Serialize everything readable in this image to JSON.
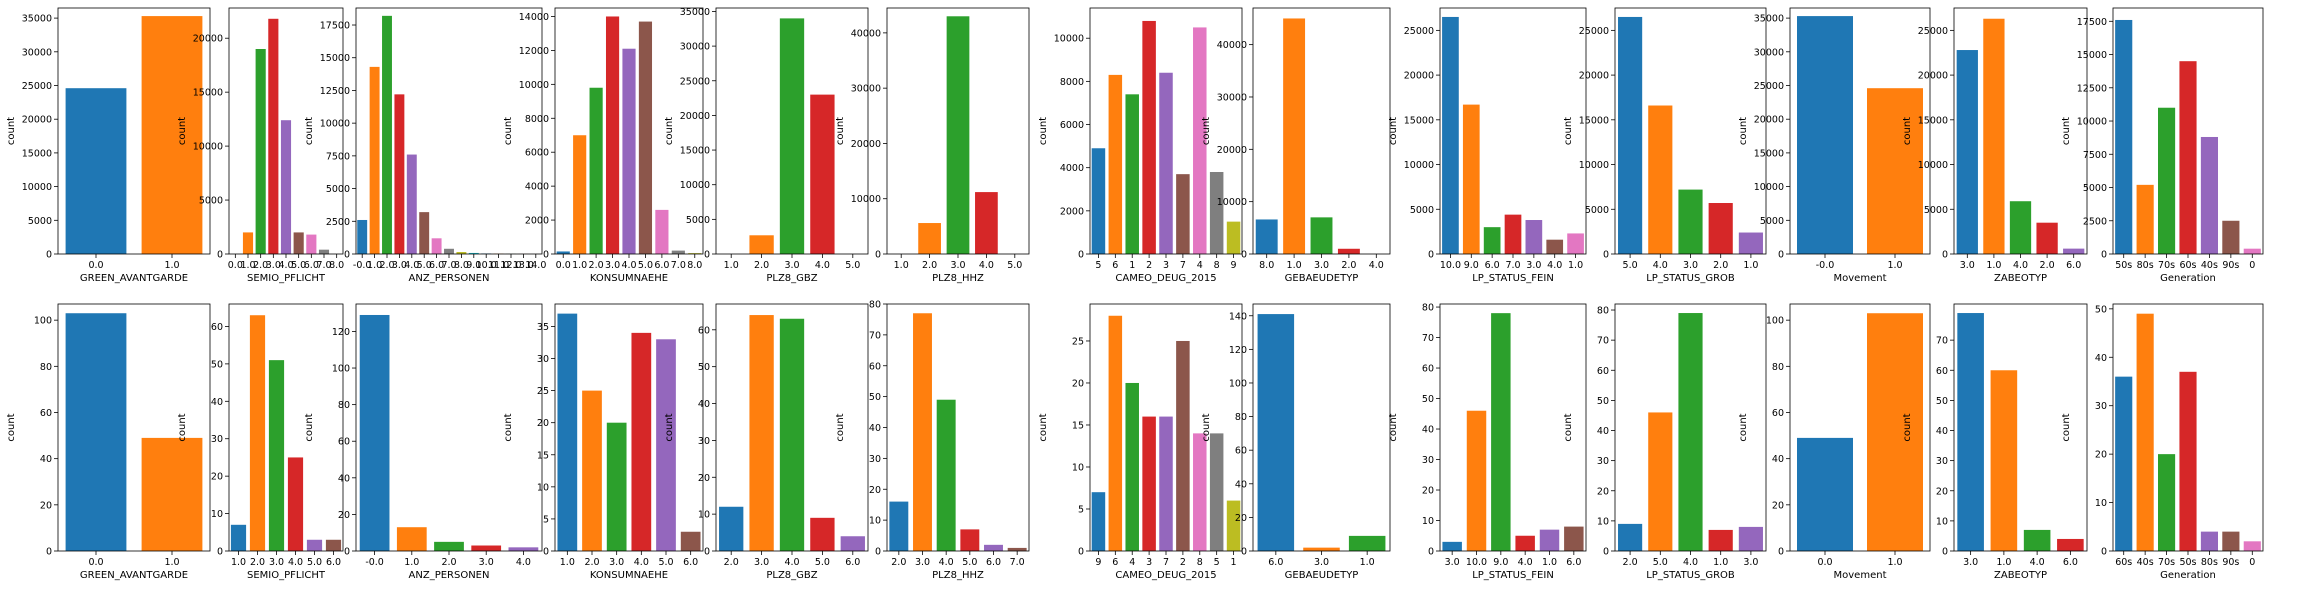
{
  "palette": [
    "#1f77b4",
    "#ff7f0e",
    "#2ca02c",
    "#d62728",
    "#9467bd",
    "#8c564b",
    "#e377c2",
    "#7f7f7f",
    "#bcbd22",
    "#17becf"
  ],
  "chart_data": [
    {
      "type": "bar",
      "xlabel": "GREEN_AVANTGARDE",
      "ylabel": "count",
      "categories": [
        "0.0",
        "1.0"
      ],
      "values": [
        24600,
        35300
      ],
      "ylim": [
        0,
        36500
      ],
      "yticks": [
        "0",
        "5000",
        "10000",
        "15000",
        "20000",
        "25000",
        "30000",
        "35000"
      ]
    },
    {
      "type": "bar",
      "xlabel": "SEMIO_PFLICHT",
      "ylabel": "count",
      "categories": [
        "0.0",
        "1.0",
        "2.0",
        "3.0",
        "4.0",
        "5.0",
        "6.0",
        "7.0",
        "8.0"
      ],
      "values": [
        0,
        2000,
        19000,
        21800,
        12400,
        2000,
        1800,
        400,
        0
      ],
      "ylim": [
        0,
        22800
      ],
      "yticks": [
        "0",
        "5000",
        "10000",
        "15000",
        "20000"
      ]
    },
    {
      "type": "bar",
      "xlabel": "ANZ_PERSONEN",
      "ylabel": "count",
      "categories": [
        "-0.0",
        "1.0",
        "2.0",
        "3.0",
        "4.0",
        "5.0",
        "6.0",
        "7.0",
        "8.0",
        "9.0",
        "10.0",
        "11.0",
        "12.0",
        "13.0",
        "14.0"
      ],
      "values": [
        2600,
        14300,
        18200,
        12200,
        7600,
        3200,
        1200,
        400,
        150,
        80,
        40,
        20,
        10,
        5,
        3
      ],
      "ylim": [
        0,
        18800
      ],
      "yticks": [
        "0",
        "2500",
        "5000",
        "7500",
        "10000",
        "12500",
        "15000",
        "17500"
      ]
    },
    {
      "type": "bar",
      "xlabel": "KONSUMNAEHE",
      "ylabel": "count",
      "categories": [
        "0.0",
        "1.0",
        "2.0",
        "3.0",
        "4.0",
        "5.0",
        "6.0",
        "7.0",
        "8.0"
      ],
      "values": [
        150,
        7000,
        9800,
        14000,
        12100,
        13700,
        2600,
        200,
        50
      ],
      "ylim": [
        0,
        14500
      ],
      "yticks": [
        "0",
        "2000",
        "4000",
        "6000",
        "8000",
        "10000",
        "12000",
        "14000"
      ]
    },
    {
      "type": "bar",
      "xlabel": "PLZ8_GBZ",
      "ylabel": "count",
      "categories": [
        "1.0",
        "2.0",
        "3.0",
        "4.0",
        "5.0"
      ],
      "values": [
        0,
        2700,
        34000,
        23000,
        0
      ],
      "ylim": [
        0,
        35500
      ],
      "yticks": [
        "0",
        "5000",
        "10000",
        "15000",
        "20000",
        "25000",
        "30000",
        "35000"
      ]
    },
    {
      "type": "bar",
      "xlabel": "PLZ8_HHZ",
      "ylabel": "count",
      "categories": [
        "1.0",
        "2.0",
        "3.0",
        "4.0",
        "5.0"
      ],
      "values": [
        0,
        5600,
        43000,
        11200,
        0
      ],
      "ylim": [
        0,
        44500
      ],
      "yticks": [
        "0",
        "10000",
        "20000",
        "30000",
        "40000"
      ]
    },
    {
      "type": "bar",
      "xlabel": "CAMEO_DEUG_2015",
      "ylabel": "count",
      "categories": [
        "5",
        "6",
        "1",
        "2",
        "3",
        "7",
        "4",
        "8",
        "9"
      ],
      "values": [
        4900,
        8300,
        7400,
        10800,
        8400,
        3700,
        10500,
        3800,
        1500
      ],
      "ylim": [
        0,
        11400
      ],
      "yticks": [
        "0",
        "2000",
        "4000",
        "6000",
        "8000",
        "10000"
      ]
    },
    {
      "type": "bar",
      "xlabel": "GEBAEUDETYP",
      "ylabel": "count",
      "categories": [
        "8.0",
        "1.0",
        "3.0",
        "2.0",
        "4.0"
      ],
      "values": [
        6600,
        45000,
        7000,
        1000,
        0
      ],
      "ylim": [
        0,
        47000
      ],
      "yticks": [
        "0",
        "10000",
        "20000",
        "30000",
        "40000"
      ]
    },
    {
      "type": "bar",
      "xlabel": "LP_STATUS_FEIN",
      "ylabel": "count",
      "categories": [
        "10.0",
        "9.0",
        "6.0",
        "7.0",
        "3.0",
        "4.0",
        "1.0"
      ],
      "values": [
        26500,
        16700,
        3000,
        4400,
        3800,
        1600,
        2300
      ],
      "ylim": [
        0,
        27500
      ],
      "yticks": [
        "0",
        "5000",
        "10000",
        "15000",
        "20000",
        "25000"
      ]
    },
    {
      "type": "bar",
      "xlabel": "LP_STATUS_GROB",
      "ylabel": "count",
      "categories": [
        "5.0",
        "4.0",
        "3.0",
        "2.0",
        "1.0"
      ],
      "values": [
        26500,
        16600,
        7200,
        5700,
        2400
      ],
      "ylim": [
        0,
        27500
      ],
      "yticks": [
        "0",
        "5000",
        "10000",
        "15000",
        "20000",
        "25000"
      ]
    },
    {
      "type": "bar",
      "xlabel": "Movement",
      "ylabel": "count",
      "categories": [
        "-0.0",
        "1.0"
      ],
      "values": [
        35300,
        24600
      ],
      "ylim": [
        0,
        36500
      ],
      "yticks": [
        "0",
        "5000",
        "10000",
        "15000",
        "20000",
        "25000",
        "30000",
        "35000"
      ]
    },
    {
      "type": "bar",
      "xlabel": "ZABEOTYP",
      "ylabel": "count",
      "categories": [
        "3.0",
        "1.0",
        "4.0",
        "2.0",
        "6.0"
      ],
      "values": [
        22800,
        26300,
        5900,
        3500,
        600
      ],
      "ylim": [
        0,
        27500
      ],
      "yticks": [
        "0",
        "5000",
        "10000",
        "15000",
        "20000",
        "25000"
      ]
    },
    {
      "type": "bar",
      "xlabel": "Generation",
      "ylabel": "count",
      "categories": [
        "50s",
        "80s",
        "70s",
        "60s",
        "40s",
        "90s",
        "0"
      ],
      "values": [
        17600,
        5200,
        11000,
        14500,
        8800,
        2500,
        400
      ],
      "ylim": [
        0,
        18500
      ],
      "yticks": [
        "0",
        "2500",
        "5000",
        "7500",
        "10000",
        "12500",
        "15000",
        "17500"
      ]
    },
    {
      "type": "bar",
      "xlabel": "GREEN_AVANTGARDE",
      "ylabel": "count",
      "categories": [
        "0.0",
        "1.0"
      ],
      "values": [
        103,
        49
      ],
      "ylim": [
        0,
        107
      ],
      "yticks": [
        "0",
        "20",
        "40",
        "60",
        "80",
        "100"
      ]
    },
    {
      "type": "bar",
      "xlabel": "SEMIO_PFLICHT",
      "ylabel": "count",
      "categories": [
        "1.0",
        "2.0",
        "3.0",
        "4.0",
        "5.0",
        "6.0"
      ],
      "values": [
        7,
        63,
        51,
        25,
        3,
        3
      ],
      "ylim": [
        0,
        66
      ],
      "yticks": [
        "0",
        "10",
        "20",
        "30",
        "40",
        "50",
        "60"
      ]
    },
    {
      "type": "bar",
      "xlabel": "ANZ_PERSONEN",
      "ylabel": "count",
      "categories": [
        "-0.0",
        "1.0",
        "2.0",
        "3.0",
        "4.0"
      ],
      "values": [
        129,
        13,
        5,
        3,
        2
      ],
      "ylim": [
        0,
        135
      ],
      "yticks": [
        "0",
        "20",
        "40",
        "60",
        "80",
        "100",
        "120"
      ]
    },
    {
      "type": "bar",
      "xlabel": "KONSUMNAEHE",
      "ylabel": "count",
      "categories": [
        "1.0",
        "2.0",
        "3.0",
        "4.0",
        "5.0",
        "6.0"
      ],
      "values": [
        37,
        25,
        20,
        34,
        33,
        3
      ],
      "ylim": [
        0,
        38.5
      ],
      "yticks": [
        "0",
        "5",
        "10",
        "15",
        "20",
        "25",
        "30",
        "35"
      ]
    },
    {
      "type": "bar",
      "xlabel": "PLZ8_GBZ",
      "ylabel": "count",
      "categories": [
        "2.0",
        "3.0",
        "4.0",
        "5.0",
        "6.0"
      ],
      "values": [
        12,
        64,
        63,
        9,
        4
      ],
      "ylim": [
        0,
        67
      ],
      "yticks": [
        "0",
        "10",
        "20",
        "30",
        "40",
        "50",
        "60"
      ]
    },
    {
      "type": "bar",
      "xlabel": "PLZ8_HHZ",
      "ylabel": "count",
      "categories": [
        "2.0",
        "3.0",
        "4.0",
        "5.0",
        "6.0",
        "7.0"
      ],
      "values": [
        16,
        77,
        49,
        7,
        2,
        1
      ],
      "ylim": [
        0,
        80
      ],
      "yticks": [
        "0",
        "10",
        "20",
        "30",
        "40",
        "50",
        "60",
        "70",
        "80"
      ]
    },
    {
      "type": "bar",
      "xlabel": "CAMEO_DEUG_2015",
      "ylabel": "count",
      "categories": [
        "9",
        "6",
        "4",
        "3",
        "7",
        "2",
        "8",
        "5",
        "1"
      ],
      "values": [
        7,
        28,
        20,
        16,
        16,
        25,
        14,
        14,
        6
      ],
      "ylim": [
        0,
        29.4
      ],
      "yticks": [
        "0",
        "5",
        "10",
        "15",
        "20",
        "25"
      ]
    },
    {
      "type": "bar",
      "xlabel": "GEBAEUDETYP",
      "ylabel": "count",
      "categories": [
        "6.0",
        "3.0",
        "1.0"
      ],
      "values": [
        141,
        2,
        9
      ],
      "ylim": [
        0,
        147
      ],
      "yticks": [
        "0",
        "20",
        "40",
        "60",
        "80",
        "100",
        "120",
        "140"
      ]
    },
    {
      "type": "bar",
      "xlabel": "LP_STATUS_FEIN",
      "ylabel": "count",
      "categories": [
        "3.0",
        "10.0",
        "9.0",
        "4.0",
        "1.0",
        "6.0"
      ],
      "values": [
        3,
        46,
        78,
        5,
        7,
        8
      ],
      "ylim": [
        0,
        81
      ],
      "yticks": [
        "0",
        "10",
        "20",
        "30",
        "40",
        "50",
        "60",
        "70",
        "80"
      ]
    },
    {
      "type": "bar",
      "xlabel": "LP_STATUS_GROB",
      "ylabel": "count",
      "categories": [
        "2.0",
        "5.0",
        "4.0",
        "1.0",
        "3.0"
      ],
      "values": [
        9,
        46,
        79,
        7,
        8
      ],
      "ylim": [
        0,
        82
      ],
      "yticks": [
        "0",
        "10",
        "20",
        "30",
        "40",
        "50",
        "60",
        "70",
        "80"
      ]
    },
    {
      "type": "bar",
      "xlabel": "Movement",
      "ylabel": "count",
      "categories": [
        "0.0",
        "1.0"
      ],
      "values": [
        49,
        103
      ],
      "ylim": [
        0,
        107
      ],
      "yticks": [
        "0",
        "20",
        "40",
        "60",
        "80",
        "100"
      ]
    },
    {
      "type": "bar",
      "xlabel": "ZABEOTYP",
      "ylabel": "count",
      "categories": [
        "3.0",
        "1.0",
        "4.0",
        "6.0"
      ],
      "values": [
        79,
        60,
        7,
        4
      ],
      "ylim": [
        0,
        82
      ],
      "yticks": [
        "0",
        "10",
        "20",
        "30",
        "40",
        "50",
        "60",
        "70"
      ]
    },
    {
      "type": "bar",
      "xlabel": "Generation",
      "ylabel": "count",
      "categories": [
        "60s",
        "40s",
        "70s",
        "50s",
        "80s",
        "90s",
        "0"
      ],
      "values": [
        36,
        49,
        20,
        37,
        4,
        4,
        2
      ],
      "ylim": [
        0,
        51
      ],
      "yticks": [
        "0",
        "10",
        "20",
        "30",
        "40",
        "50"
      ]
    }
  ]
}
